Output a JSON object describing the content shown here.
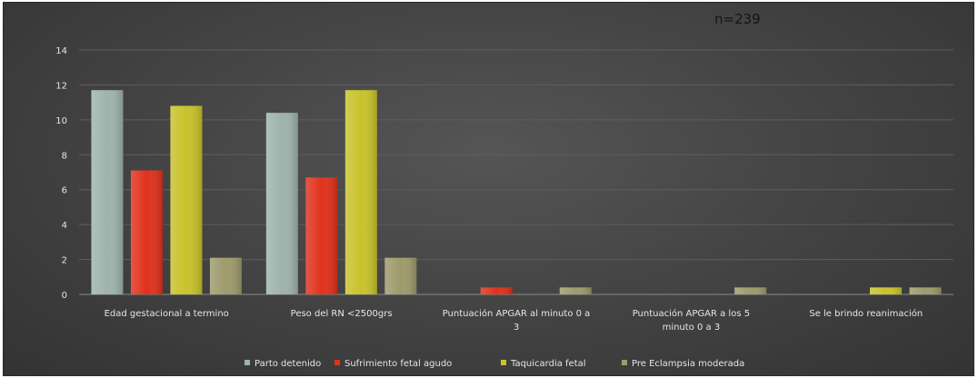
{
  "chart_data": {
    "type": "bar",
    "title": "",
    "annotation": "n=239",
    "xlabel": "",
    "ylabel": "",
    "ylim": [
      0,
      14
    ],
    "yticks": [
      "0",
      "2",
      "4",
      "6",
      "8",
      "10",
      "12",
      "14"
    ],
    "grid": true,
    "legend_position": "bottom",
    "categories": [
      [
        "Edad gestacional a termino"
      ],
      [
        "Peso del RN <2500grs"
      ],
      [
        "Puntuación APGAR al minuto 0 a",
        "3"
      ],
      [
        "Puntuación APGAR a los 5",
        "minuto 0 a 3"
      ],
      [
        "Se le brindo reanimación"
      ]
    ],
    "series": [
      {
        "name": "Parto detenido",
        "color": "#9fb3ad",
        "values": [
          11.7,
          10.4,
          0,
          0,
          0
        ]
      },
      {
        "name": "Sufrimiento fetal agudo",
        "color": "#e0321c",
        "values": [
          7.1,
          6.7,
          0.4,
          0,
          0
        ]
      },
      {
        "name": "Taquicardia fetal",
        "color": "#c9c22c",
        "values": [
          10.8,
          11.7,
          0,
          0,
          0.4
        ]
      },
      {
        "name": "Pre Eclampsia moderada",
        "color": "#9e9a6c",
        "values": [
          2.1,
          2.1,
          0.4,
          0.4,
          0.4
        ]
      }
    ]
  }
}
